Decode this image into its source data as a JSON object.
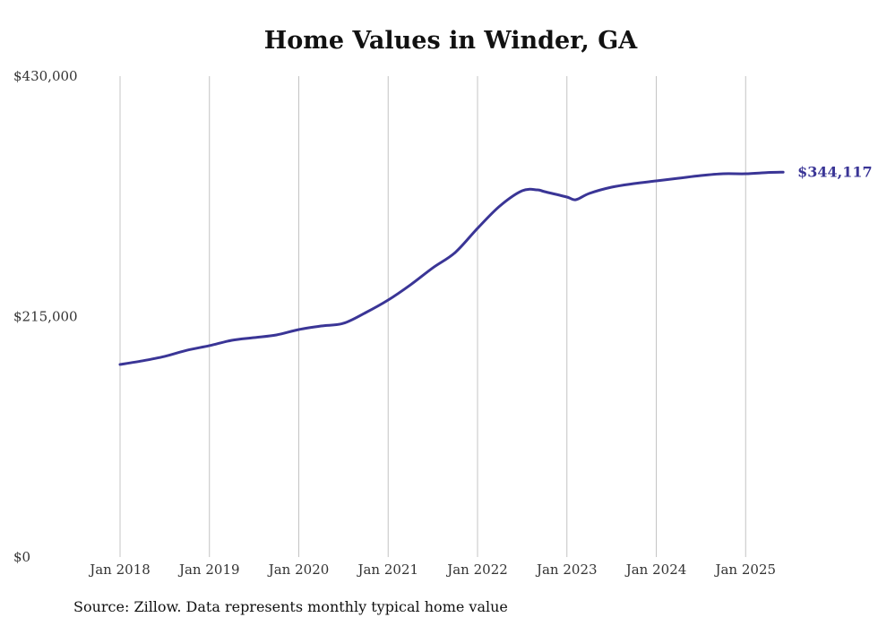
{
  "chart_data": {
    "type": "line",
    "title": "Home Values in Winder, GA",
    "source": "Source: Zillow. Data represents monthly typical home value",
    "xlabel": "",
    "ylabel": "",
    "ylim": [
      0,
      430000
    ],
    "xlim": [
      2018.0,
      2025.42
    ],
    "grid": "vertical",
    "y_ticks": [
      {
        "value": 0,
        "label": "$0"
      },
      {
        "value": 215000,
        "label": "$215,000"
      },
      {
        "value": 430000,
        "label": "$430,000"
      }
    ],
    "x_ticks": [
      {
        "value": 2018,
        "label": "Jan 2018"
      },
      {
        "value": 2019,
        "label": "Jan 2019"
      },
      {
        "value": 2020,
        "label": "Jan 2020"
      },
      {
        "value": 2021,
        "label": "Jan 2021"
      },
      {
        "value": 2022,
        "label": "Jan 2022"
      },
      {
        "value": 2023,
        "label": "Jan 2023"
      },
      {
        "value": 2024,
        "label": "Jan 2024"
      },
      {
        "value": 2025,
        "label": "Jan 2025"
      }
    ],
    "series": [
      {
        "name": "Typical home value",
        "color": "#3a3596",
        "end_label": "$344,117",
        "x": [
          2018.0,
          2018.25,
          2018.5,
          2018.75,
          2019.0,
          2019.25,
          2019.5,
          2019.75,
          2020.0,
          2020.25,
          2020.5,
          2020.75,
          2021.0,
          2021.25,
          2021.5,
          2021.75,
          2022.0,
          2022.25,
          2022.5,
          2022.67,
          2022.75,
          2023.0,
          2023.1,
          2023.25,
          2023.5,
          2023.75,
          2024.0,
          2024.25,
          2024.5,
          2024.75,
          2025.0,
          2025.25,
          2025.42
        ],
        "values": [
          172200,
          175400,
          179400,
          184900,
          189000,
          193800,
          196200,
          198600,
          203400,
          206600,
          209000,
          218600,
          229800,
          243400,
          258600,
          272300,
          293900,
          313900,
          327500,
          328300,
          326700,
          321900,
          319500,
          325100,
          330700,
          333900,
          336300,
          338700,
          341100,
          342700,
          342700,
          343800,
          344117
        ]
      }
    ]
  }
}
